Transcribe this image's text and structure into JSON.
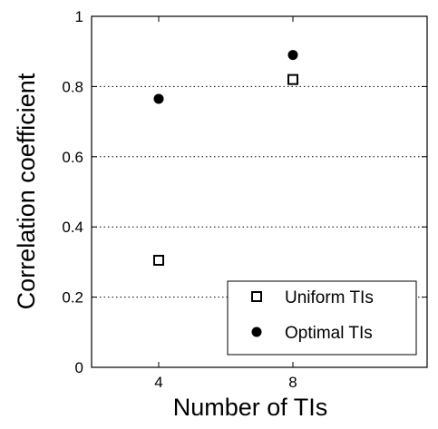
{
  "chart_data": {
    "type": "scatter",
    "xlabel": "Number of TIs",
    "ylabel": "Correlation coefficient",
    "xlim": [
      2,
      12
    ],
    "ylim": [
      0,
      1
    ],
    "x_ticks": [
      4,
      8
    ],
    "y_ticks": [
      0,
      0.2,
      0.4,
      0.6,
      0.8,
      1
    ],
    "y_tick_labels": [
      "0",
      "0.2",
      "0.4",
      "0.6",
      "0.8",
      "1"
    ],
    "grid": "horizontal dotted",
    "legend_position": "lower-right",
    "series": [
      {
        "name": "Uniform TIs",
        "marker": "open-square",
        "x": [
          4,
          8
        ],
        "y": [
          0.305,
          0.82
        ]
      },
      {
        "name": "Optimal TIs",
        "marker": "filled-circle",
        "x": [
          4,
          8
        ],
        "y": [
          0.765,
          0.89
        ]
      }
    ]
  }
}
